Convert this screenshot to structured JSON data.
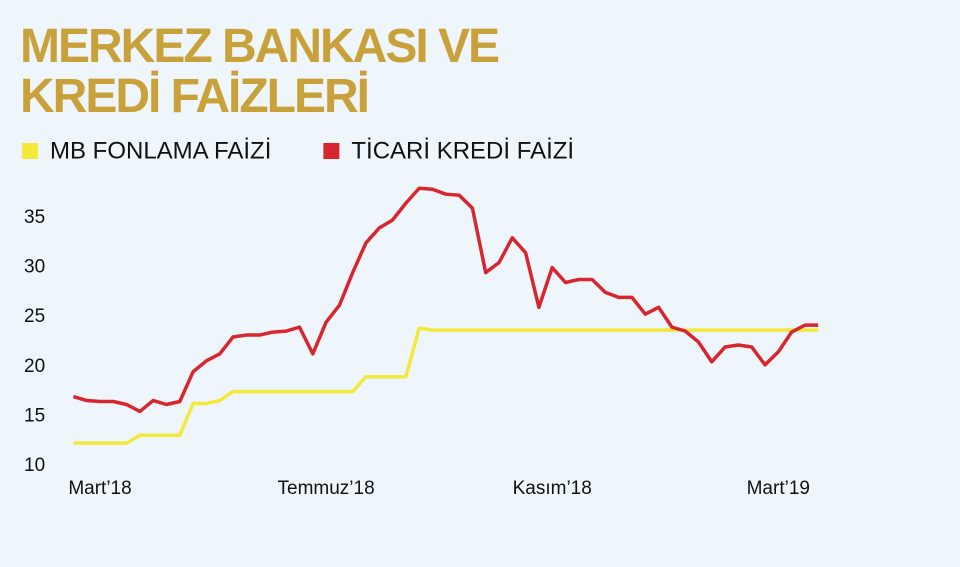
{
  "chart_data": {
    "type": "line",
    "title": "MERKEZ BANKASI VE KREDİ FAİZLERİ",
    "categories": [
      null,
      null,
      "Mart’18",
      null,
      null,
      null,
      null,
      null,
      null,
      null,
      null,
      null,
      null,
      null,
      null,
      null,
      null,
      null,
      null,
      "Temmuz’18",
      null,
      null,
      null,
      null,
      null,
      null,
      null,
      null,
      null,
      null,
      null,
      null,
      null,
      null,
      null,
      null,
      "Kasım’18",
      null,
      null,
      null,
      null,
      null,
      null,
      null,
      null,
      null,
      null,
      null,
      null,
      null,
      null,
      null,
      null,
      "Mart’19",
      null,
      null,
      null
    ],
    "series": [
      {
        "name": "MB FONLAMA FAİZİ",
        "color": "#f2e93a",
        "values": [
          12.3,
          12.3,
          12.3,
          12.3,
          12.3,
          13.1,
          13.1,
          13.1,
          13.1,
          16.3,
          16.3,
          16.6,
          17.5,
          17.5,
          17.5,
          17.5,
          17.5,
          17.5,
          17.5,
          17.5,
          17.5,
          17.5,
          19.0,
          19.0,
          19.0,
          19.0,
          23.9,
          23.7,
          23.7,
          23.7,
          23.7,
          23.7,
          23.7,
          23.7,
          23.7,
          23.7,
          23.7,
          23.7,
          23.7,
          23.7,
          23.7,
          23.7,
          23.7,
          23.7,
          23.7,
          23.7,
          23.7,
          23.7,
          23.7,
          23.7,
          23.7,
          23.7,
          23.7,
          23.7,
          23.7,
          23.7,
          23.7
        ]
      },
      {
        "name": "TİCARİ KREDİ FAİZİ",
        "color": "#d8262f",
        "values": [
          17.0,
          16.6,
          16.5,
          16.5,
          16.2,
          15.5,
          16.6,
          16.2,
          16.5,
          19.5,
          20.6,
          21.3,
          23.0,
          23.2,
          23.2,
          23.5,
          23.6,
          24.0,
          21.3,
          24.5,
          26.2,
          29.5,
          32.5,
          34.0,
          34.8,
          36.5,
          38.0,
          37.9,
          37.4,
          37.3,
          36.0,
          29.5,
          30.5,
          33.0,
          31.5,
          26.0,
          30.0,
          28.5,
          28.8,
          28.8,
          27.5,
          27.0,
          27.0,
          25.3,
          26.0,
          24.0,
          23.6,
          22.5,
          20.5,
          22.0,
          22.2,
          22.0,
          20.2,
          21.5,
          23.5,
          24.2,
          24.2
        ]
      }
    ],
    "ylim": [
      10,
      39
    ],
    "yticks": [
      10,
      15,
      20,
      25,
      30,
      35
    ],
    "grid": false
  }
}
